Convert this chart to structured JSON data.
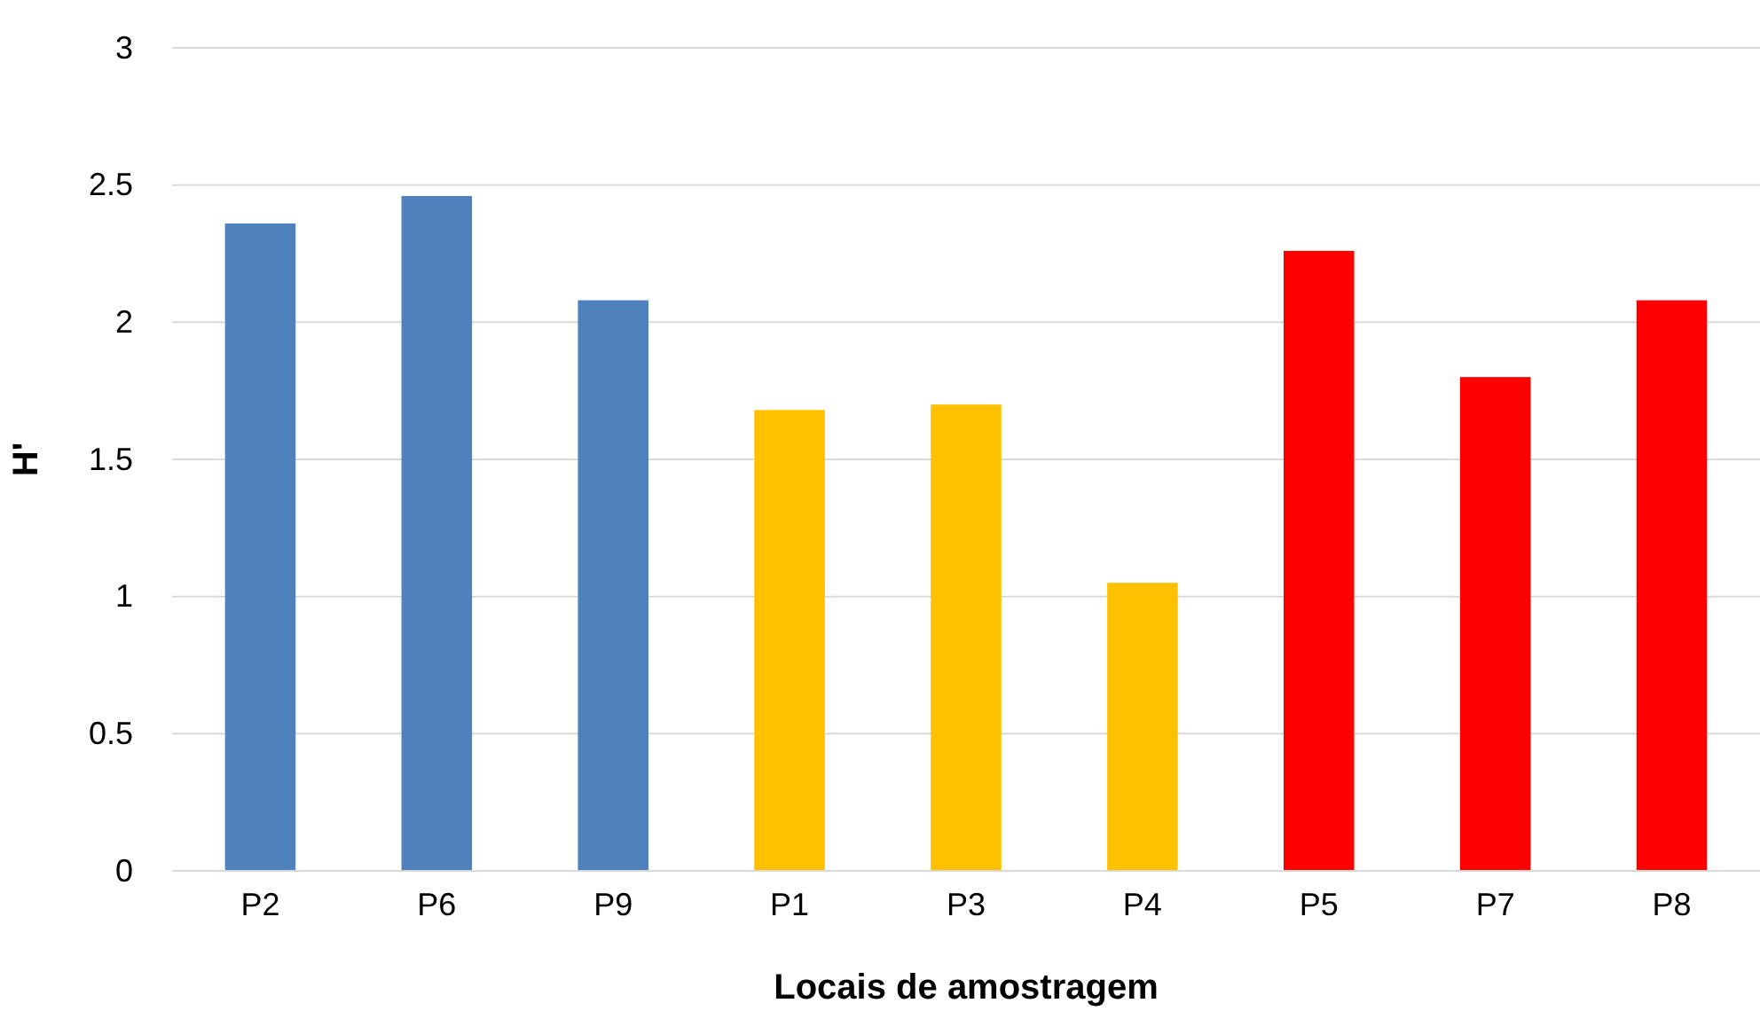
{
  "chart_data": {
    "type": "bar",
    "xlabel": "Locais de amostragem",
    "ylabel": "H'",
    "categories": [
      "P2",
      "P6",
      "P9",
      "P1",
      "P3",
      "P4",
      "P5",
      "P7",
      "P8"
    ],
    "values": [
      2.36,
      2.46,
      2.08,
      1.68,
      1.7,
      1.05,
      2.26,
      1.8,
      2.08
    ],
    "colors": [
      "#4f81bd",
      "#4f81bd",
      "#4f81bd",
      "#ffc000",
      "#ffc000",
      "#ffc000",
      "#ff0000",
      "#ff0000",
      "#ff0000"
    ],
    "ylim": [
      0,
      3
    ],
    "yticks": [
      0,
      0.5,
      1,
      1.5,
      2,
      2.5,
      3
    ],
    "grid": "y"
  }
}
